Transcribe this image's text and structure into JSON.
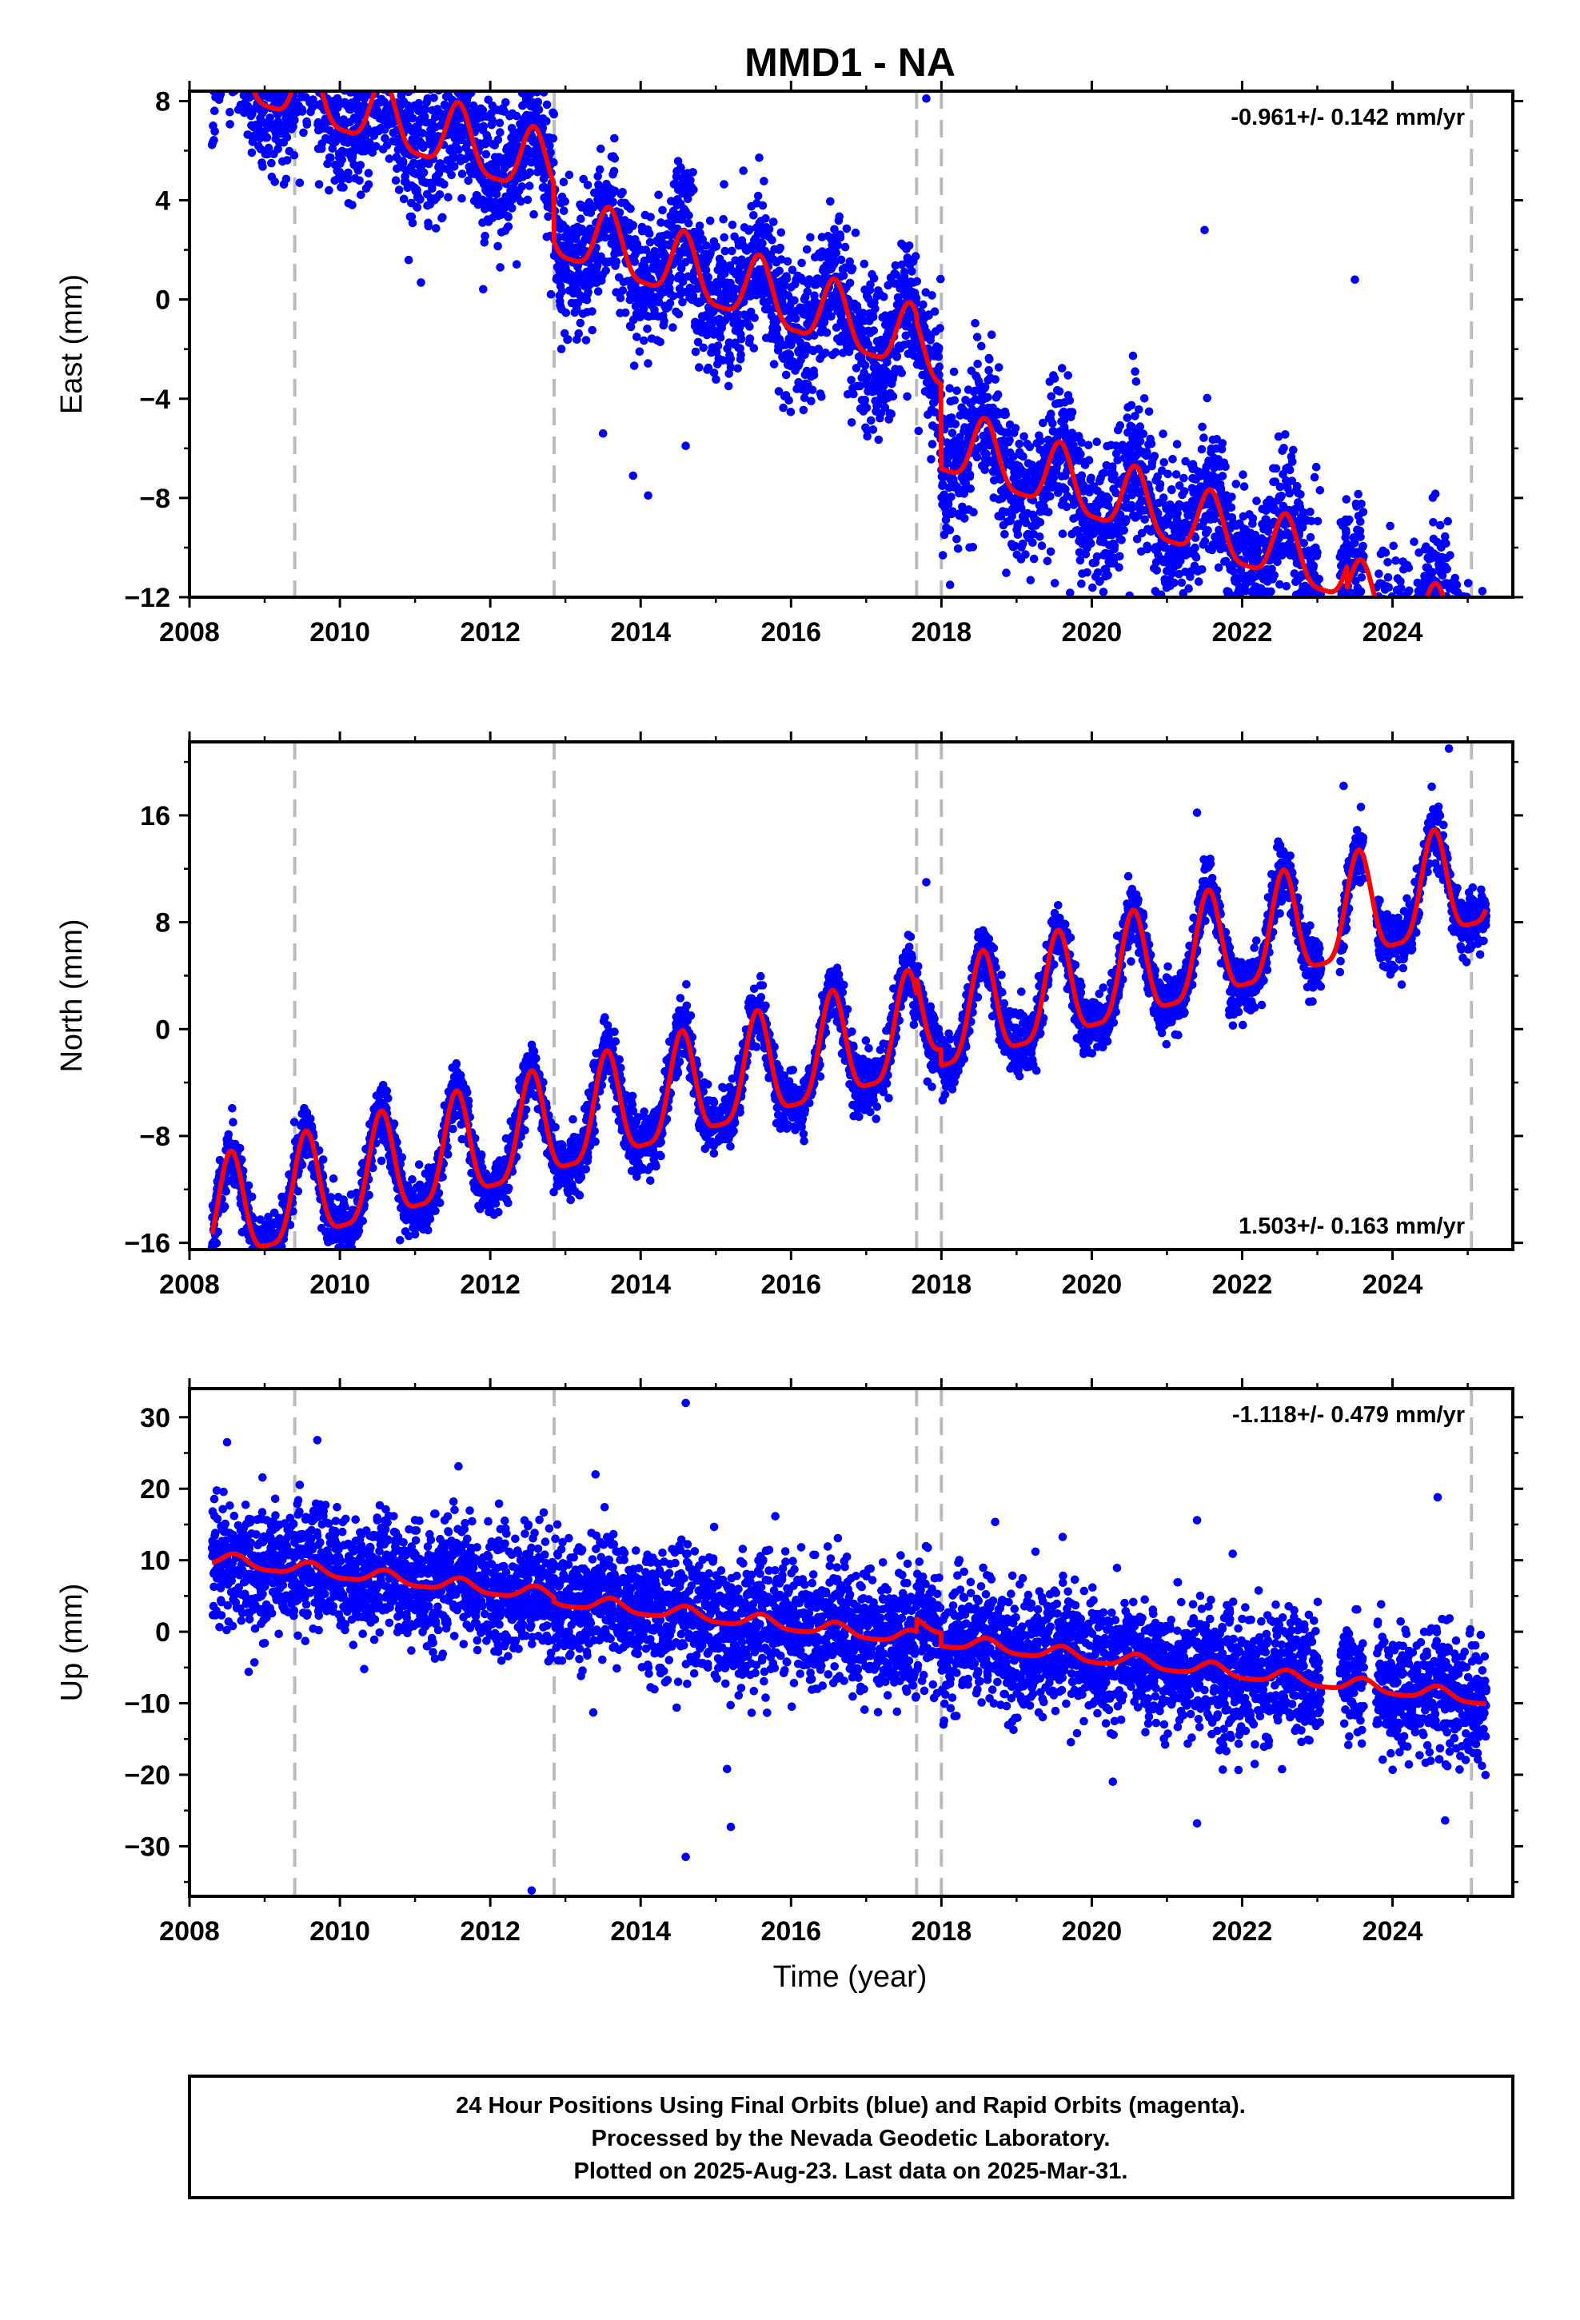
{
  "figure": {
    "title": "MMD1 - NA",
    "xlabel": "Time (year)",
    "footer": [
      "24 Hour Positions Using Final Orbits (blue) and Rapid Orbits (magenta).",
      "Processed by the Nevada Geodetic Laboratory.",
      "Plotted on 2025-Aug-23. Last data on 2025-Mar-31."
    ],
    "colors": {
      "points": "#0000ff",
      "model": "#ff0000",
      "events": "#bbbbbb",
      "axes": "#000000"
    }
  },
  "chart_data": [
    {
      "type": "scatter",
      "ylabel": "East (mm)",
      "rate": "-0.961+/- 0.142 mm/yr",
      "rate_position": "top-right",
      "xlim": [
        2008,
        2025.6
      ],
      "ylim": [
        -12,
        8.4
      ],
      "xticks": [
        2008,
        2010,
        2012,
        2014,
        2016,
        2018,
        2020,
        2022,
        2024
      ],
      "yticks": [
        8,
        4,
        0,
        -4,
        -8,
        -12
      ],
      "event_lines": [
        2009.4,
        2012.85,
        2017.67,
        2018.0,
        2025.05
      ],
      "model": {
        "start": 2008.3,
        "end": 2025.25,
        "segments": [
          {
            "t0": 2008.3,
            "t1": 2012.85,
            "offset": 1.3
          },
          {
            "t0": 2012.85,
            "t1": 2017.67,
            "offset": -1.0
          },
          {
            "t0": 2017.67,
            "t1": 2018.0,
            "offset": -1.3
          },
          {
            "t0": 2018.0,
            "t1": 2025.05,
            "offset": -4.7
          },
          {
            "t0": 2025.05,
            "t1": 2025.25,
            "offset": -6.1
          }
        ],
        "rate": -0.961,
        "t_ref": 2016.8,
        "annual_amp": 1.3,
        "annual_peak": 2008.58,
        "noise_sd": 1.45,
        "extra": [
          {
            "t0": 2023.4,
            "t1": 2025.3,
            "offset": -0.9
          }
        ]
      },
      "outliers": [
        {
          "x": 2008.9,
          "y": 6.9
        },
        {
          "x": 2009.15,
          "y": 6.7
        },
        {
          "x": 2012.6,
          "y": 6.4
        },
        {
          "x": 2013.5,
          "y": -5.4
        },
        {
          "x": 2013.9,
          "y": -7.1
        },
        {
          "x": 2014.1,
          "y": -7.9
        },
        {
          "x": 2014.6,
          "y": -5.9
        },
        {
          "x": 2017.8,
          "y": 8.1
        },
        {
          "x": 2022.85,
          "y": -11.8
        },
        {
          "x": 2023.5,
          "y": 0.8
        },
        {
          "x": 2021.5,
          "y": 2.8
        },
        {
          "x": 2010.6,
          "y": 6.5
        }
      ]
    },
    {
      "type": "scatter",
      "ylabel": "North (mm)",
      "rate": "1.503+/- 0.163 mm/yr",
      "rate_position": "bottom-right",
      "xlim": [
        2008,
        2025.6
      ],
      "ylim": [
        -16.5,
        21.5
      ],
      "xticks": [
        2008,
        2010,
        2012,
        2014,
        2016,
        2018,
        2020,
        2022,
        2024
      ],
      "yticks": [
        16,
        8,
        0,
        -8,
        -16
      ],
      "event_lines": [
        2009.4,
        2012.85,
        2017.67,
        2018.0,
        2025.05
      ],
      "model": {
        "start": 2008.3,
        "end": 2025.25,
        "segments": [
          {
            "t0": 2008.3,
            "t1": 2012.85,
            "offset": 0.0
          },
          {
            "t0": 2012.85,
            "t1": 2017.67,
            "offset": 0.0
          },
          {
            "t0": 2017.67,
            "t1": 2018.0,
            "offset": 1.2
          },
          {
            "t0": 2018.0,
            "t1": 2025.05,
            "offset": 0.0
          },
          {
            "t0": 2025.05,
            "t1": 2025.25,
            "offset": 0.0
          }
        ],
        "rate": 1.503,
        "t_ref": 2016.8,
        "annual_amp": 3.9,
        "annual_peak": 2008.55,
        "noise_sd": 1.1,
        "extra": [
          {
            "t0": 2008.3,
            "t1": 2025.3,
            "offset": -1.6
          }
        ]
      },
      "outliers": [
        {
          "x": 2010.8,
          "y": -15.8
        },
        {
          "x": 2008.7,
          "y": -15.2
        },
        {
          "x": 2024.75,
          "y": 21.0
        },
        {
          "x": 2023.35,
          "y": 18.2
        },
        {
          "x": 2021.4,
          "y": 16.2
        },
        {
          "x": 2017.8,
          "y": 11.0
        }
      ]
    },
    {
      "type": "scatter",
      "ylabel": "Up (mm)",
      "rate": "-1.118+/- 0.479 mm/yr",
      "rate_position": "top-right",
      "xlim": [
        2008,
        2025.6
      ],
      "ylim": [
        -37,
        34
      ],
      "xticks": [
        2008,
        2010,
        2012,
        2014,
        2016,
        2018,
        2020,
        2022,
        2024
      ],
      "yticks": [
        30,
        20,
        10,
        0,
        -10,
        -20,
        -30
      ],
      "event_lines": [
        2009.4,
        2012.85,
        2017.67,
        2018.0,
        2025.05
      ],
      "model": {
        "start": 2008.3,
        "end": 2025.25,
        "segments": [
          {
            "t0": 2008.3,
            "t1": 2012.85,
            "offset": 0.6
          },
          {
            "t0": 2012.85,
            "t1": 2017.67,
            "offset": 0.0
          },
          {
            "t0": 2017.67,
            "t1": 2018.0,
            "offset": 1.8
          },
          {
            "t0": 2018.0,
            "t1": 2025.05,
            "offset": 0.0
          },
          {
            "t0": 2025.05,
            "t1": 2025.25,
            "offset": 0.0
          }
        ],
        "rate": -1.118,
        "t_ref": 2016.8,
        "annual_amp": 0.9,
        "annual_peak": 2008.6,
        "noise_sd": 4.3,
        "extra": []
      },
      "outliers": [
        {
          "x": 2014.6,
          "y": 32.0
        },
        {
          "x": 2008.5,
          "y": 26.5
        },
        {
          "x": 2009.7,
          "y": 26.8
        },
        {
          "x": 2012.55,
          "y": -36.2
        },
        {
          "x": 2014.6,
          "y": -31.5
        },
        {
          "x": 2015.2,
          "y": -27.3
        },
        {
          "x": 2015.15,
          "y": -19.2
        },
        {
          "x": 2021.4,
          "y": -26.8
        },
        {
          "x": 2024.7,
          "y": -26.4
        },
        {
          "x": 2024.6,
          "y": 18.8
        },
        {
          "x": 2021.4,
          "y": 15.6
        },
        {
          "x": 2013.4,
          "y": 22.0
        }
      ]
    }
  ]
}
